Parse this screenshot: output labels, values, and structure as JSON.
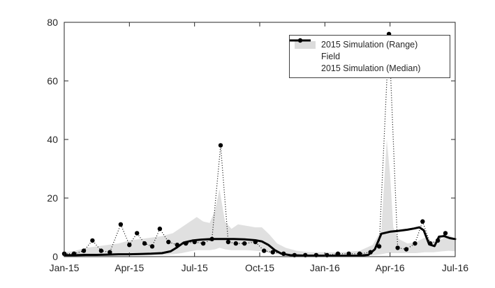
{
  "figure": {
    "background": "#ffffff",
    "axis_color": "#262626",
    "text_color": "#262626",
    "tick_font_size": 14
  },
  "chart_data": {
    "type": "line",
    "title": "",
    "xlabel": "",
    "ylabel": "",
    "x_unit": "months since Jan-2015",
    "xlim": [
      0,
      18
    ],
    "ylim": [
      0,
      80
    ],
    "grid": false,
    "legend_position": "top-right",
    "legend": [
      "2015 Simulation (Range)",
      "Field",
      "2015 Simulation (Median)"
    ],
    "x_ticks": {
      "positions": [
        0,
        3,
        6,
        9,
        12,
        15,
        18
      ],
      "labels": [
        "Jan-15",
        "Apr-15",
        "Jul-15",
        "Oct-15",
        "Jan-16",
        "Apr-16",
        "Jul-16"
      ]
    },
    "y_ticks": {
      "positions": [
        0,
        20,
        40,
        60,
        80
      ],
      "labels": [
        "0",
        "20",
        "40",
        "60",
        "80"
      ]
    },
    "series": [
      {
        "name": "2015 Simulation (Range)",
        "type": "band",
        "color": "#d8d8d8",
        "x": [
          0,
          0.5,
          1,
          1.5,
          2,
          2.5,
          3,
          3.5,
          4,
          4.5,
          5,
          5.4,
          5.8,
          6.1,
          6.4,
          6.7,
          6.95,
          7.15,
          7.4,
          7.7,
          8,
          8.4,
          8.8,
          9.1,
          9.45,
          9.8,
          10.2,
          10.7,
          11.3,
          12,
          12.8,
          13.6,
          14.2,
          14.6,
          14.85,
          15.0,
          15.15,
          15.4,
          15.8,
          16.2,
          16.6,
          17,
          17.4,
          17.7,
          18
        ],
        "upper": [
          1.5,
          2,
          3,
          3.5,
          4,
          4.5,
          5.5,
          6,
          6.5,
          7,
          8,
          10,
          12,
          13.5,
          12,
          11.5,
          16,
          23,
          12,
          9.5,
          11,
          10.5,
          10,
          10,
          7.5,
          4.5,
          3,
          2,
          1.5,
          1.5,
          1.5,
          2,
          4,
          9,
          40,
          28,
          10,
          6,
          4.5,
          5,
          6.5,
          5,
          6,
          7.5,
          6
        ],
        "lower": [
          0,
          0,
          0,
          0.2,
          0.3,
          0.3,
          0.4,
          0.5,
          0.5,
          0.6,
          0.8,
          1.2,
          1.8,
          2.2,
          2.2,
          2.2,
          2.5,
          3,
          2.5,
          2.2,
          2.2,
          2.2,
          2,
          1.8,
          1.2,
          0.8,
          0.4,
          0.2,
          0.1,
          0.1,
          0.1,
          0.2,
          0.4,
          0.8,
          1.2,
          1.2,
          1.2,
          1.2,
          1.2,
          1.2,
          1.5,
          1.5,
          1.8,
          2,
          1.8
        ]
      },
      {
        "name": "Field",
        "type": "line",
        "style": "dotted",
        "marker": "filled-circle",
        "color": "#000000",
        "x": [
          0,
          0.45,
          0.9,
          1.3,
          1.7,
          2.1,
          2.6,
          3.0,
          3.35,
          3.7,
          4.05,
          4.4,
          4.8,
          5.2,
          5.6,
          6.0,
          6.4,
          6.8,
          7.2,
          7.55,
          7.9,
          8.3,
          8.8,
          9.2,
          9.6,
          10.1,
          10.6,
          11.1,
          11.6,
          12.1,
          12.6,
          13.1,
          13.6,
          14.1,
          14.5,
          14.95,
          15.35,
          15.75,
          16.15,
          16.5,
          16.85,
          17.2,
          17.55
        ],
        "y": [
          1,
          1,
          2,
          5.5,
          2,
          1.5,
          11,
          4,
          8,
          4.5,
          3.5,
          9.5,
          5,
          4,
          4.5,
          5,
          4.5,
          6,
          38,
          5,
          4.5,
          4.5,
          5,
          2,
          1.5,
          1,
          0.5,
          0.5,
          0.5,
          0.5,
          1,
          1,
          1,
          1.5,
          3.5,
          76,
          3,
          2.5,
          4.5,
          12,
          4.5,
          5.5,
          8
        ]
      },
      {
        "name": "2015 Simulation (Median)",
        "type": "line",
        "style": "solid",
        "width": 3,
        "color": "#000000",
        "x": [
          0,
          0.5,
          1,
          1.5,
          2,
          2.5,
          3,
          3.5,
          4,
          4.5,
          4.9,
          5.2,
          5.5,
          5.9,
          6.3,
          6.8,
          7.3,
          7.8,
          8.3,
          8.8,
          9.1,
          9.4,
          9.7,
          10,
          10.4,
          11,
          12,
          13,
          13.6,
          14.0,
          14.3,
          14.6,
          15.0,
          15.4,
          15.8,
          16.1,
          16.35,
          16.55,
          16.8,
          17.05,
          17.25,
          17.5,
          17.75,
          18
        ],
        "y": [
          0.5,
          0.5,
          0.6,
          0.6,
          0.7,
          0.8,
          0.8,
          0.9,
          1.0,
          1.2,
          1.8,
          3.2,
          4.8,
          5.5,
          5.8,
          6.0,
          6.0,
          6.0,
          5.9,
          5.6,
          5.2,
          4.0,
          2.2,
          1.0,
          0.5,
          0.35,
          0.3,
          0.3,
          0.35,
          0.6,
          2.5,
          7.8,
          8.5,
          8.8,
          9.2,
          9.6,
          10.0,
          9.0,
          4.2,
          3.6,
          6.8,
          7.0,
          6.3,
          6.0
        ]
      }
    ]
  }
}
